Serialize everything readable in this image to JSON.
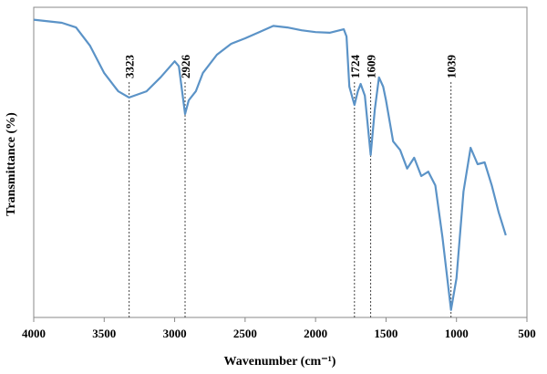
{
  "chart_data": {
    "type": "line",
    "xlabel": "Wavenumber (cm⁻¹)",
    "ylabel": "Transmittance  (%)",
    "x": [
      4000,
      3800,
      3700,
      3600,
      3500,
      3400,
      3323,
      3200,
      3100,
      3000,
      2970,
      2926,
      2900,
      2850,
      2800,
      2700,
      2600,
      2500,
      2400,
      2300,
      2200,
      2100,
      2000,
      1900,
      1800,
      1780,
      1760,
      1724,
      1700,
      1680,
      1650,
      1609,
      1580,
      1550,
      1520,
      1500,
      1450,
      1400,
      1350,
      1300,
      1250,
      1200,
      1150,
      1100,
      1039,
      1000,
      950,
      900,
      850,
      800,
      750,
      700,
      650
    ],
    "values": [
      96,
      95,
      93.5,
      87.6,
      78.8,
      72.9,
      70.9,
      72.9,
      77.4,
      82.6,
      81,
      65.6,
      70,
      72.9,
      78.8,
      84.7,
      88.2,
      90,
      92,
      94,
      93.5,
      92.6,
      92,
      91.8,
      92.9,
      90.6,
      74.4,
      68.5,
      72.9,
      75.3,
      71.5,
      52.4,
      67,
      77.4,
      74.4,
      70,
      56.8,
      54,
      48,
      51.5,
      45.6,
      47,
      42.6,
      25.9,
      2.4,
      12.6,
      40.6,
      54.7,
      49.4,
      50,
      42.6,
      33.8,
      26.5
    ],
    "color": "#5b93c7",
    "xlim": [
      4000,
      500
    ],
    "xticks": [
      4000,
      3500,
      3000,
      2500,
      2000,
      1500,
      1000,
      500
    ],
    "ylim": [
      0,
      100
    ],
    "peaks": [
      3323,
      2926,
      1724,
      1609,
      1039
    ]
  }
}
